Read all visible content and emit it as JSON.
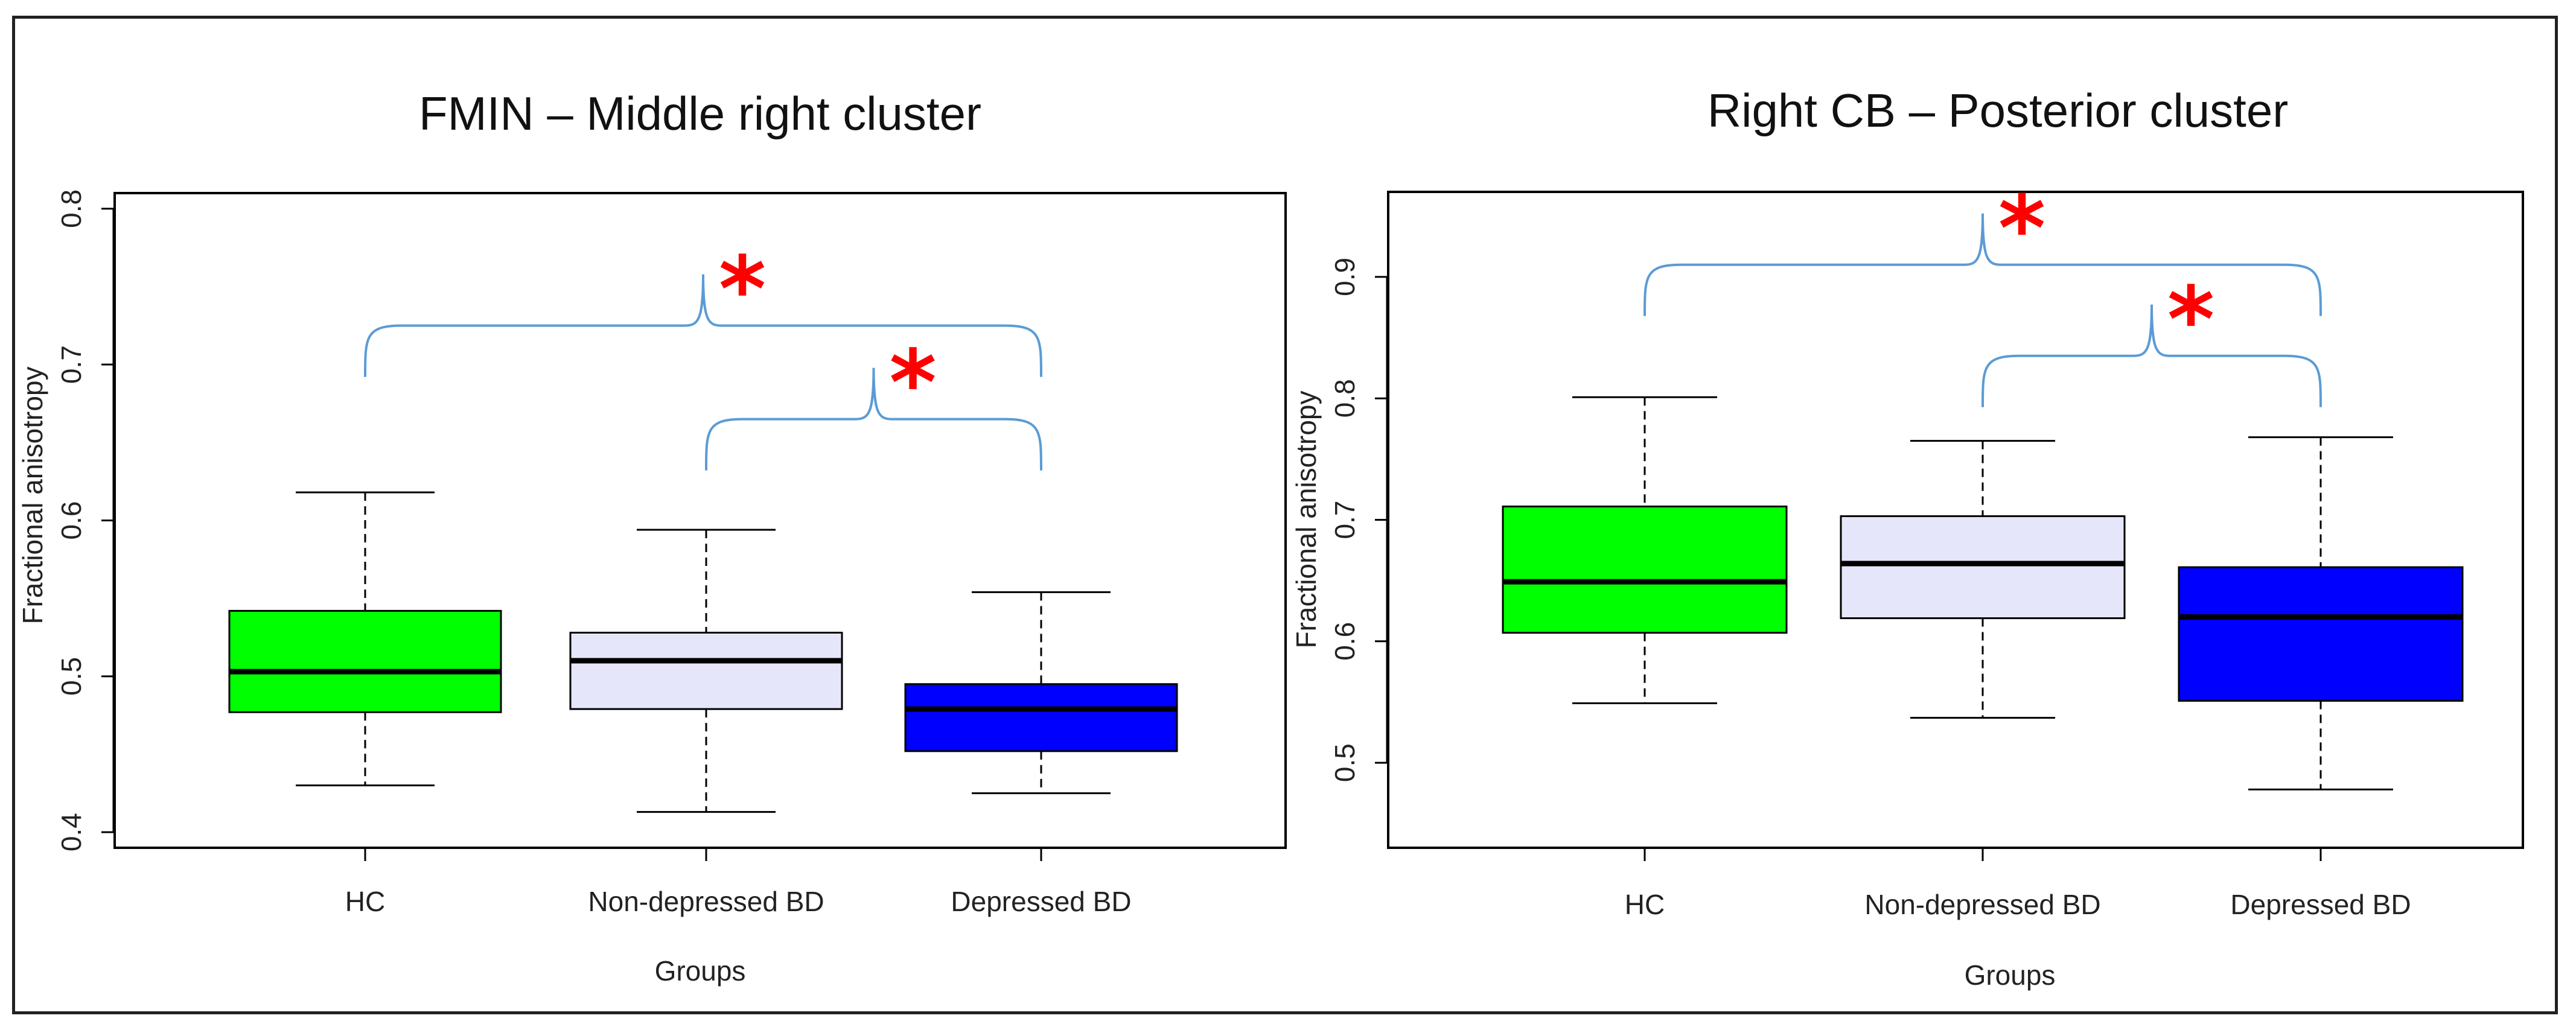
{
  "chart_data": [
    {
      "type": "boxplot",
      "title": "FMIN – Middle right cluster",
      "xlabel": "Groups",
      "ylabel": "Fractional anisotropy",
      "ylim": [
        0.39,
        0.81
      ],
      "yticks": [
        0.4,
        0.5,
        0.6,
        0.7,
        0.8
      ],
      "yticklabels": [
        "0.4",
        "0.5",
        "0.6",
        "0.7",
        "0.8"
      ],
      "categories": [
        "HC",
        "Non-depressed BD",
        "Depressed BD"
      ],
      "boxes": [
        {
          "group": "HC",
          "min": 0.43,
          "q1": 0.477,
          "median": 0.503,
          "q3": 0.542,
          "max": 0.618,
          "color": "#00ff00"
        },
        {
          "group": "Non-depressed BD",
          "min": 0.413,
          "q1": 0.479,
          "median": 0.51,
          "q3": 0.528,
          "max": 0.594,
          "color": "#e6e6fa"
        },
        {
          "group": "Depressed BD",
          "min": 0.425,
          "q1": 0.452,
          "median": 0.479,
          "q3": 0.495,
          "max": 0.554,
          "color": "#0000ff"
        }
      ],
      "significance": [
        {
          "from": "HC",
          "to": "Depressed BD",
          "marker": "*",
          "bracket_y": 0.725
        },
        {
          "from": "Non-depressed BD",
          "to": "Depressed BD",
          "marker": "*",
          "bracket_y": 0.665
        }
      ]
    },
    {
      "type": "boxplot",
      "title": "Right CB – Posterior cluster",
      "xlabel": "Groups",
      "ylabel": "Fractional anisotropy",
      "ylim": [
        0.43,
        0.97
      ],
      "yticks": [
        0.5,
        0.6,
        0.7,
        0.8,
        0.9
      ],
      "yticklabels": [
        "0.5",
        "0.6",
        "0.7",
        "0.8",
        "0.9"
      ],
      "categories": [
        "HC",
        "Non-depressed BD",
        "Depressed BD"
      ],
      "boxes": [
        {
          "group": "HC",
          "min": 0.549,
          "q1": 0.607,
          "median": 0.649,
          "q3": 0.711,
          "max": 0.801,
          "color": "#00ff00"
        },
        {
          "group": "Non-depressed BD",
          "min": 0.537,
          "q1": 0.619,
          "median": 0.664,
          "q3": 0.703,
          "max": 0.765,
          "color": "#e6e6fa"
        },
        {
          "group": "Depressed BD",
          "min": 0.478,
          "q1": 0.551,
          "median": 0.62,
          "q3": 0.661,
          "max": 0.768,
          "color": "#0000ff"
        }
      ],
      "significance": [
        {
          "from": "HC",
          "to": "Depressed BD",
          "marker": "*",
          "bracket_y": 0.91
        },
        {
          "from": "Non-depressed BD",
          "to": "Depressed BD",
          "marker": "*",
          "bracket_y": 0.835
        }
      ]
    }
  ],
  "colors": {
    "hc": "#00ff00",
    "non_depressed": "#e6e6fa",
    "depressed": "#0000ff",
    "bracket": "#5b9bd5",
    "significance": "#ff0000"
  }
}
